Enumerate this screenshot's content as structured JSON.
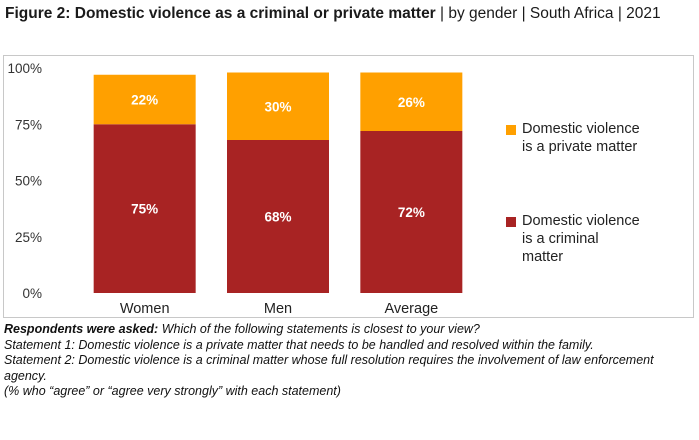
{
  "header": {
    "title_bold": "Figure 2: Domestic violence as a criminal or private matter",
    "title_rest": " | by gender | South Africa | 2021"
  },
  "chart_data": {
    "type": "bar",
    "stacked": true,
    "categories": [
      "Women",
      "Men",
      "Average"
    ],
    "series": [
      {
        "name": "Domestic violence is a criminal matter",
        "values": [
          75,
          68,
          72
        ],
        "labels": [
          "75%",
          "68%",
          "72%"
        ],
        "color": "#a82323"
      },
      {
        "name": "Domestic violence is a private matter",
        "values": [
          22,
          30,
          26
        ],
        "labels": [
          "22%",
          "30%",
          "26%"
        ],
        "color": "#ffa000"
      }
    ],
    "ylim": [
      0,
      100
    ],
    "yticks": [
      "0%",
      "25%",
      "50%",
      "75%",
      "100%"
    ],
    "legend_position": "right"
  },
  "legend": {
    "items": [
      {
        "label": "Domestic violence is a private matter",
        "color": "#ffa000"
      },
      {
        "label": "Domestic violence is a criminal matter",
        "color": "#a82323"
      }
    ]
  },
  "notes": {
    "asked_label": "Respondents were asked:",
    "asked_text": " Which of the following statements is closest to your view?",
    "statement1": "Statement 1: Domestic violence is a private matter that needs to be handled and resolved within the family.",
    "statement2": "Statement 2: Domestic violence is a criminal matter whose full resolution requires the involvement of law enforcement agency.",
    "footnote": "(% who “agree” or “agree very strongly” with each statement)"
  }
}
